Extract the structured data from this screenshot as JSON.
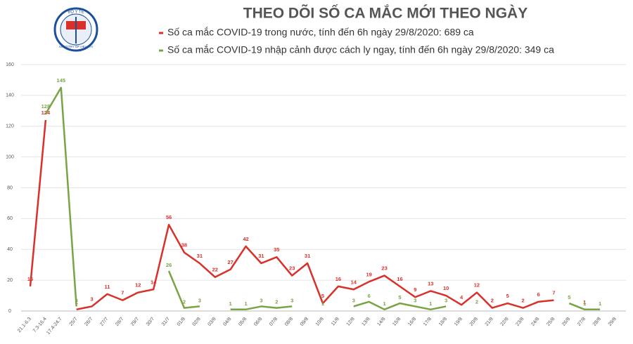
{
  "logo": {
    "top": "BỘ Y TẾ",
    "bottom": "MINISTRY OF HEALTH"
  },
  "chart_data": {
    "type": "line",
    "title": "THEO DÕI SỐ CA MẮC MỚI THEO NGÀY",
    "categories": [
      "21.1-6.3",
      "7.3-16.4",
      "17.4-24.7",
      "25/7",
      "26/7",
      "27/7",
      "28/7",
      "29/7",
      "30/7",
      "31/7",
      "01/8",
      "02/8",
      "03/8",
      "04/8",
      "05/8",
      "06/8",
      "07/8",
      "08/8",
      "09/8",
      "10/8",
      "11/8",
      "12/8",
      "13/8",
      "14/8",
      "15/8",
      "16/8",
      "17/8",
      "18/8",
      "19/8",
      "20/8",
      "21/8",
      "22/8",
      "23/8",
      "24/8",
      "25/8",
      "26/8",
      "27/8",
      "28/8",
      "29/8"
    ],
    "series": [
      {
        "name": "Số ca mắc COVID-19 trong nước, tính đến 6h ngày 29/8/2020: 689 ca",
        "color": "#d9302a",
        "values": [
          16,
          124,
          null,
          1,
          3,
          11,
          7,
          12,
          14,
          56,
          38,
          31,
          22,
          27,
          42,
          31,
          35,
          23,
          31,
          5,
          16,
          14,
          19,
          23,
          16,
          9,
          13,
          10,
          4,
          12,
          2,
          5,
          2,
          6,
          7,
          null,
          1,
          null,
          null
        ]
      },
      {
        "name": "Số ca mắc COVID-19 nhập cảnh được cách ly ngay, tính đến 6h ngày 29/8/2020: 349 ca",
        "color": "#7aa346",
        "values": [
          null,
          128,
          145,
          3,
          null,
          null,
          null,
          null,
          null,
          26,
          2,
          3,
          null,
          1,
          1,
          3,
          2,
          3,
          null,
          1,
          null,
          3,
          6,
          1,
          5,
          3,
          1,
          3,
          null,
          2,
          null,
          null,
          null,
          null,
          null,
          5,
          1,
          1,
          null
        ]
      }
    ],
    "ylim": [
      0,
      160
    ],
    "yticks": [
      0,
      20,
      40,
      60,
      80,
      100,
      120,
      140,
      160
    ],
    "grid": true
  }
}
